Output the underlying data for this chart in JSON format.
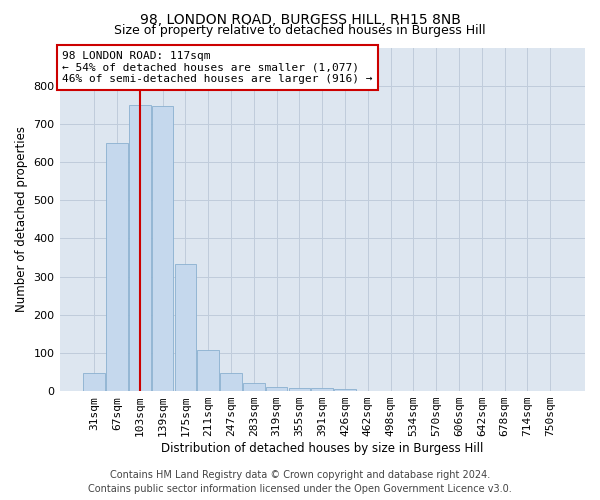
{
  "title": "98, LONDON ROAD, BURGESS HILL, RH15 8NB",
  "subtitle": "Size of property relative to detached houses in Burgess Hill",
  "xlabel": "Distribution of detached houses by size in Burgess Hill",
  "ylabel": "Number of detached properties",
  "categories": [
    "31sqm",
    "67sqm",
    "103sqm",
    "139sqm",
    "175sqm",
    "211sqm",
    "247sqm",
    "283sqm",
    "319sqm",
    "355sqm",
    "391sqm",
    "426sqm",
    "462sqm",
    "498sqm",
    "534sqm",
    "570sqm",
    "606sqm",
    "642sqm",
    "678sqm",
    "714sqm",
    "750sqm"
  ],
  "values": [
    47,
    650,
    750,
    748,
    332,
    107,
    47,
    20,
    12,
    9,
    8,
    5,
    0,
    0,
    0,
    0,
    0,
    0,
    0,
    0,
    0
  ],
  "bar_color": "#c5d8ed",
  "bar_edgecolor": "#8ab0d0",
  "vline_x": 2,
  "vline_color": "#cc0000",
  "annotation_text": "98 LONDON ROAD: 117sqm\n← 54% of detached houses are smaller (1,077)\n46% of semi-detached houses are larger (916) →",
  "annotation_box_color": "#ffffff",
  "annotation_box_edgecolor": "#cc0000",
  "ylim": [
    0,
    900
  ],
  "yticks": [
    0,
    100,
    200,
    300,
    400,
    500,
    600,
    700,
    800
  ],
  "background_color": "#dde6f0",
  "grid_color": "#c0ccdb",
  "footer_line1": "Contains HM Land Registry data © Crown copyright and database right 2024.",
  "footer_line2": "Contains public sector information licensed under the Open Government Licence v3.0.",
  "title_fontsize": 10,
  "subtitle_fontsize": 9,
  "xlabel_fontsize": 8.5,
  "ylabel_fontsize": 8.5,
  "tick_fontsize": 8,
  "footer_fontsize": 7,
  "annotation_fontsize": 8
}
